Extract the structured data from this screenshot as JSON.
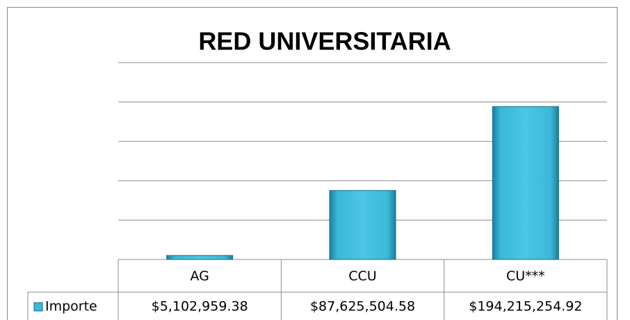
{
  "chart_data": {
    "type": "bar",
    "title": "RED UNIVERSITARIA",
    "categories": [
      "AG",
      "CCU",
      "CU***"
    ],
    "series": [
      {
        "name": "Importe",
        "color": "#3bb8d8",
        "values": [
          5102959.38,
          87625504.58,
          194215254.92
        ],
        "value_labels": [
          "$5,102,959.38",
          "$87,625,504.58",
          "$194,215,254.92"
        ]
      }
    ],
    "ylim": [
      0,
      250000000
    ],
    "yticks": [
      0,
      50000000,
      100000000,
      150000000,
      200000000,
      250000000
    ],
    "grid": true
  }
}
